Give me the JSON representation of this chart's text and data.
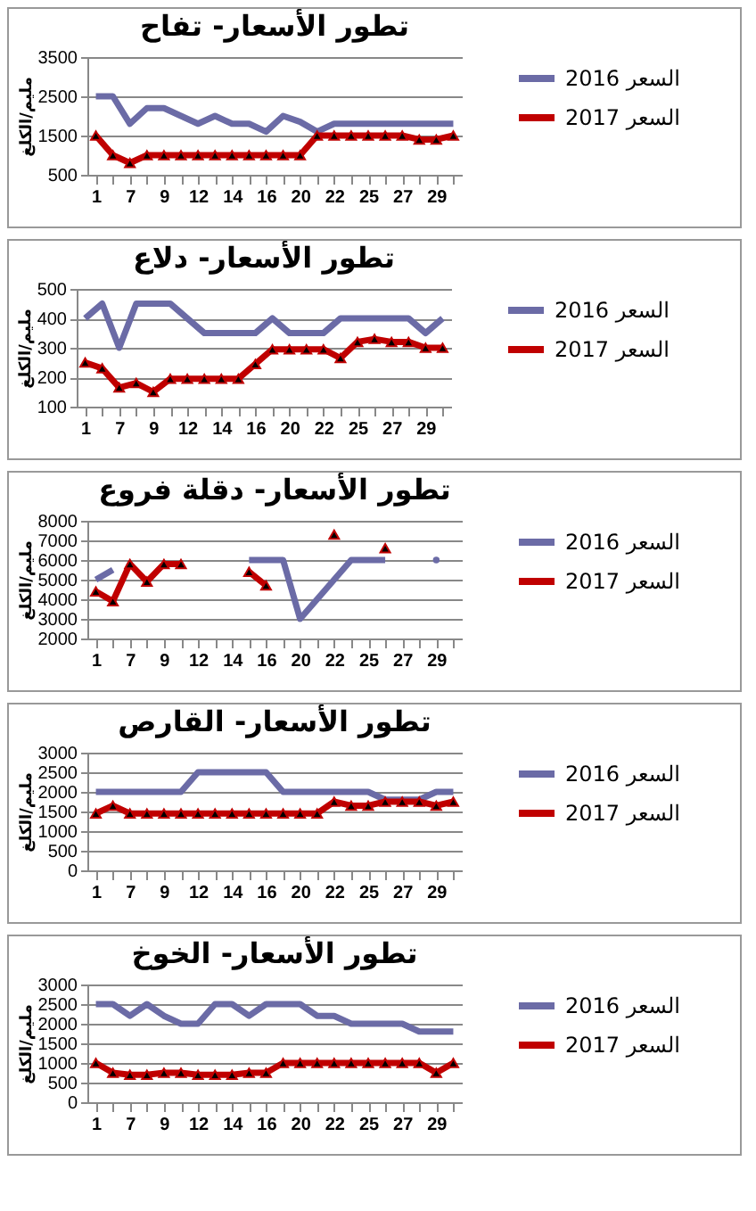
{
  "chart_data": [
    {
      "type": "line",
      "title": "تطور الأسعار- تفاح",
      "ylabel": "مليم/الكلغ",
      "categories": [
        "1",
        null,
        "7",
        null,
        "9",
        null,
        "12",
        null,
        "14",
        null,
        "16",
        null,
        "20",
        null,
        "22",
        null,
        "25",
        null,
        "27",
        null,
        "29",
        null
      ],
      "ylim": [
        500,
        3500
      ],
      "yticks": [
        500,
        1500,
        2500,
        3500
      ],
      "grid": "y",
      "legend": "right",
      "series": [
        {
          "name": "2016 السعر",
          "color": "#6b6ba6",
          "values": [
            2500,
            2500,
            1800,
            2200,
            2200,
            2000,
            1800,
            2000,
            1800,
            1800,
            1600,
            2000,
            1850,
            1600,
            1800,
            1800,
            1800,
            1800,
            1800,
            1800,
            1800,
            1800
          ]
        },
        {
          "name": "2017 السعر",
          "color": "#c00000",
          "marker": "triangle",
          "values": [
            1500,
            1000,
            800,
            1000,
            1000,
            1000,
            1000,
            1000,
            1000,
            1000,
            1000,
            1000,
            1000,
            1500,
            1500,
            1500,
            1500,
            1500,
            1500,
            1400,
            1400,
            1500
          ]
        }
      ]
    },
    {
      "type": "line",
      "title": "تطور الأسعار- دلاع",
      "ylabel": "مليم/الكلغ",
      "categories": [
        "1",
        null,
        "7",
        null,
        "9",
        null,
        "12",
        null,
        "14",
        null,
        "16",
        null,
        "20",
        null,
        "22",
        null,
        "25",
        null,
        "27",
        null,
        "29",
        null
      ],
      "ylim": [
        100,
        500
      ],
      "yticks": [
        100,
        200,
        300,
        400,
        500
      ],
      "grid": "y",
      "legend": "right",
      "series": [
        {
          "name": "2016 السعر",
          "color": "#6b6ba6",
          "values": [
            400,
            450,
            300,
            450,
            450,
            450,
            400,
            350,
            350,
            350,
            350,
            400,
            350,
            350,
            350,
            400,
            400,
            400,
            400,
            400,
            350,
            400
          ]
        },
        {
          "name": "2017 السعر",
          "color": "#c00000",
          "marker": "triangle",
          "values": [
            250,
            230,
            165,
            180,
            150,
            195,
            195,
            195,
            195,
            195,
            245,
            295,
            295,
            295,
            295,
            265,
            320,
            330,
            320,
            320,
            300,
            300
          ]
        }
      ]
    },
    {
      "type": "line",
      "title": "تطور الأسعار- دقلة فروع",
      "ylabel": "مليم/الكلغ",
      "categories": [
        "1",
        null,
        "7",
        null,
        "9",
        null,
        "12",
        null,
        "14",
        null,
        "16",
        null,
        "20",
        null,
        "22",
        null,
        "25",
        null,
        "27",
        null,
        "29",
        null
      ],
      "ylim": [
        2000,
        8000
      ],
      "yticks": [
        2000,
        3000,
        4000,
        5000,
        6000,
        7000,
        8000
      ],
      "grid": "y",
      "legend": "right",
      "series": [
        {
          "name": "2016 السعر",
          "color": "#6b6ba6",
          "values": [
            5000,
            5500,
            null,
            null,
            null,
            null,
            null,
            null,
            null,
            6000,
            6000,
            6000,
            3000,
            4000,
            5000,
            6000,
            6000,
            6000,
            null,
            null,
            6000,
            null
          ]
        },
        {
          "name": "2017 السعر",
          "color": "#c00000",
          "marker": "triangle",
          "values": [
            4400,
            3900,
            5800,
            4900,
            5800,
            5800,
            null,
            null,
            null,
            5400,
            4700,
            null,
            null,
            null,
            7300,
            null,
            null,
            6600,
            null,
            null,
            null,
            null
          ]
        }
      ]
    },
    {
      "type": "line",
      "title": "تطور الأسعار- القارص",
      "ylabel": "مليم/الكلغ",
      "categories": [
        "1",
        null,
        "7",
        null,
        "9",
        null,
        "12",
        null,
        "14",
        null,
        "16",
        null,
        "20",
        null,
        "22",
        null,
        "25",
        null,
        "27",
        null,
        "29",
        null
      ],
      "ylim": [
        0,
        3000
      ],
      "yticks": [
        0,
        500,
        1000,
        1500,
        2000,
        2500,
        3000
      ],
      "grid": "y",
      "legend": "right",
      "series": [
        {
          "name": "2016 السعر",
          "color": "#6b6ba6",
          "values": [
            2000,
            2000,
            2000,
            2000,
            2000,
            2000,
            2500,
            2500,
            2500,
            2500,
            2500,
            2000,
            2000,
            2000,
            2000,
            2000,
            2000,
            1800,
            1800,
            1800,
            2000,
            2000
          ]
        },
        {
          "name": "2017 السعر",
          "color": "#c00000",
          "marker": "triangle",
          "values": [
            1450,
            1650,
            1450,
            1450,
            1450,
            1450,
            1450,
            1450,
            1450,
            1450,
            1450,
            1450,
            1450,
            1450,
            1750,
            1650,
            1650,
            1750,
            1750,
            1750,
            1650,
            1750
          ]
        }
      ]
    },
    {
      "type": "line",
      "title": "تطور الأسعار- الخوخ",
      "ylabel": "مليم/الكلغ",
      "categories": [
        "1",
        null,
        "7",
        null,
        "9",
        null,
        "12",
        null,
        "14",
        null,
        "16",
        null,
        "20",
        null,
        "22",
        null,
        "25",
        null,
        "27",
        null,
        "29",
        null
      ],
      "ylim": [
        0,
        3000
      ],
      "yticks": [
        0,
        500,
        1000,
        1500,
        2000,
        2500,
        3000
      ],
      "grid": "y",
      "legend": "right",
      "series": [
        {
          "name": "2016 السعر",
          "color": "#6b6ba6",
          "values": [
            2500,
            2500,
            2200,
            2500,
            2200,
            2000,
            2000,
            2500,
            2500,
            2200,
            2500,
            2500,
            2500,
            2200,
            2200,
            2000,
            2000,
            2000,
            2000,
            1800,
            1800,
            1800
          ]
        },
        {
          "name": "2017 السعر",
          "color": "#c00000",
          "marker": "triangle",
          "values": [
            1000,
            750,
            700,
            700,
            750,
            750,
            700,
            700,
            700,
            750,
            750,
            1000,
            1000,
            1000,
            1000,
            1000,
            1000,
            1000,
            1000,
            1000,
            750,
            1000
          ]
        }
      ]
    }
  ]
}
